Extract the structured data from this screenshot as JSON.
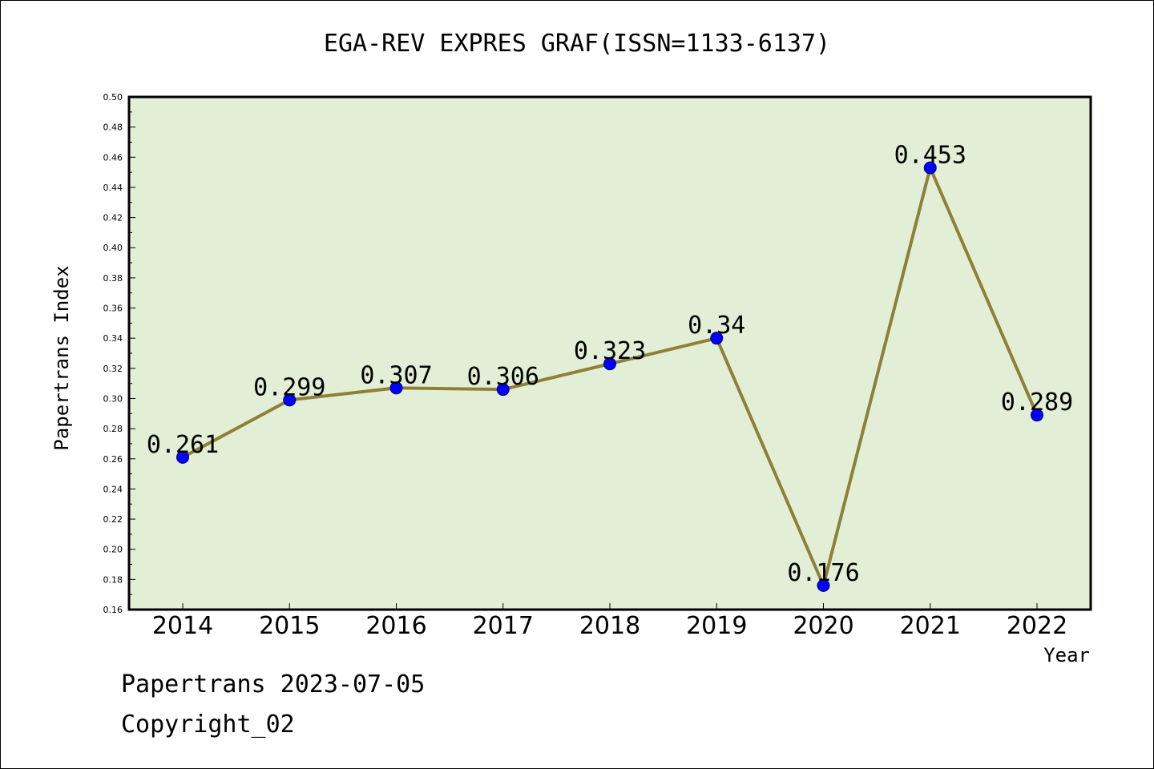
{
  "footer": {
    "line1": "Papertrans 2023-07-05",
    "line2": "Copyright_02"
  },
  "colors": {
    "plot_background": "#e2efd6",
    "line": "#8e8037",
    "marker": "#0000ff",
    "axis": "#000000"
  },
  "chart_data": {
    "type": "line",
    "title": "EGA-REV EXPRES GRAF(ISSN=1133-6137)",
    "xlabel": "Year",
    "ylabel": "Papertrans Index",
    "categories": [
      "2014",
      "2015",
      "2016",
      "2017",
      "2018",
      "2019",
      "2020",
      "2021",
      "2022"
    ],
    "series": [
      {
        "values": [
          0.261,
          0.299,
          0.307,
          0.306,
          0.323,
          0.34,
          0.176,
          0.453,
          0.289
        ],
        "data_labels": [
          "0.261",
          "0.299",
          "0.307",
          "0.306",
          "0.323",
          "0.34",
          "0.176",
          "0.453",
          "0.289"
        ]
      }
    ],
    "ylim": [
      0.16,
      0.5
    ],
    "yticks": [
      "0.16",
      "0.18",
      "0.20",
      "0.22",
      "0.24",
      "0.26",
      "0.28",
      "0.30",
      "0.32",
      "0.34",
      "0.36",
      "0.38",
      "0.40",
      "0.42",
      "0.44",
      "0.46",
      "0.48",
      "0.50"
    ],
    "grid": false,
    "legend": "none"
  }
}
